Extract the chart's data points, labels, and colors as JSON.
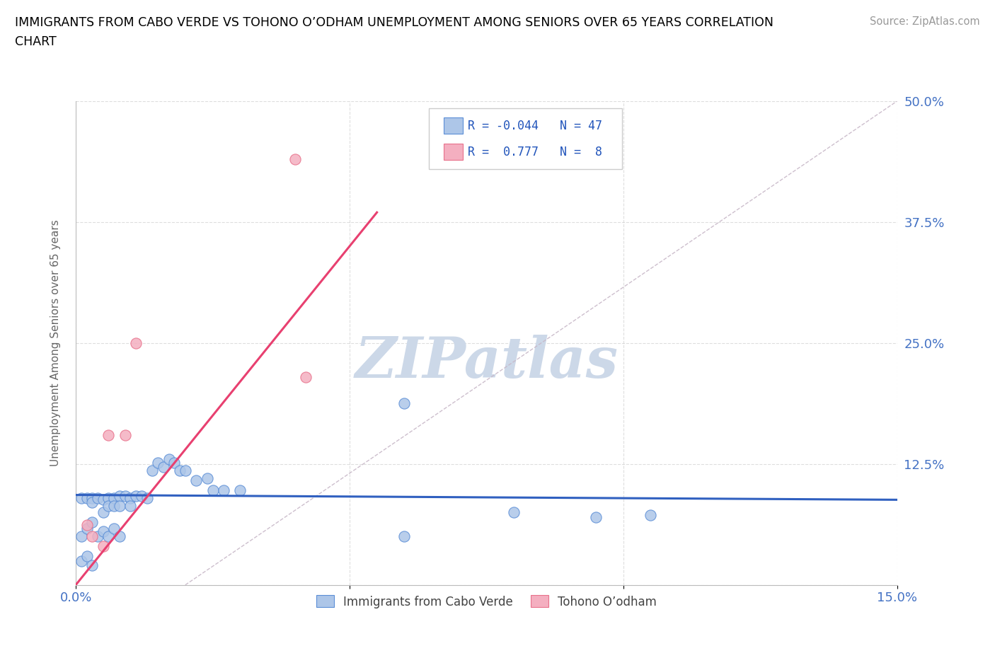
{
  "title": "IMMIGRANTS FROM CABO VERDE VS TOHONO O’ODHAM UNEMPLOYMENT AMONG SENIORS OVER 65 YEARS CORRELATION\nCHART",
  "source_text": "Source: ZipAtlas.com",
  "ylabel": "Unemployment Among Seniors over 65 years",
  "xlim": [
    0.0,
    0.15
  ],
  "ylim": [
    0.0,
    0.5
  ],
  "xticks": [
    0.0,
    0.05,
    0.1,
    0.15
  ],
  "xticklabels": [
    "0.0%",
    "",
    "",
    "15.0%"
  ],
  "yticks": [
    0.0,
    0.125,
    0.25,
    0.375,
    0.5
  ],
  "yticklabels": [
    "",
    "12.5%",
    "25.0%",
    "37.5%",
    "50.0%"
  ],
  "blue_R": -0.044,
  "blue_N": 47,
  "pink_R": 0.777,
  "pink_N": 8,
  "blue_fill": "#adc6e8",
  "pink_fill": "#f4afc0",
  "blue_edge": "#5b8ed6",
  "pink_edge": "#e8708a",
  "blue_line": "#3060c0",
  "pink_line": "#e84070",
  "ref_line": "#c8b8c8",
  "grid_color": "#c8c8c8",
  "watermark_color": "#ccd8e8",
  "blue_dots": [
    [
      0.001,
      0.09
    ],
    [
      0.002,
      0.09
    ],
    [
      0.003,
      0.09
    ],
    [
      0.003,
      0.085
    ],
    [
      0.004,
      0.09
    ],
    [
      0.005,
      0.088
    ],
    [
      0.005,
      0.075
    ],
    [
      0.006,
      0.09
    ],
    [
      0.006,
      0.082
    ],
    [
      0.007,
      0.09
    ],
    [
      0.007,
      0.082
    ],
    [
      0.008,
      0.092
    ],
    [
      0.008,
      0.082
    ],
    [
      0.009,
      0.092
    ],
    [
      0.01,
      0.09
    ],
    [
      0.01,
      0.082
    ],
    [
      0.011,
      0.092
    ],
    [
      0.012,
      0.092
    ],
    [
      0.013,
      0.09
    ],
    [
      0.014,
      0.118
    ],
    [
      0.015,
      0.126
    ],
    [
      0.016,
      0.122
    ],
    [
      0.017,
      0.13
    ],
    [
      0.018,
      0.126
    ],
    [
      0.019,
      0.118
    ],
    [
      0.02,
      0.118
    ],
    [
      0.022,
      0.108
    ],
    [
      0.024,
      0.11
    ],
    [
      0.025,
      0.098
    ],
    [
      0.027,
      0.098
    ],
    [
      0.03,
      0.098
    ],
    [
      0.001,
      0.05
    ],
    [
      0.002,
      0.058
    ],
    [
      0.003,
      0.065
    ],
    [
      0.004,
      0.05
    ],
    [
      0.005,
      0.055
    ],
    [
      0.006,
      0.05
    ],
    [
      0.007,
      0.058
    ],
    [
      0.008,
      0.05
    ],
    [
      0.001,
      0.025
    ],
    [
      0.002,
      0.03
    ],
    [
      0.003,
      0.02
    ],
    [
      0.06,
      0.188
    ],
    [
      0.06,
      0.05
    ],
    [
      0.08,
      0.075
    ],
    [
      0.095,
      0.07
    ],
    [
      0.105,
      0.072
    ]
  ],
  "pink_dots": [
    [
      0.006,
      0.155
    ],
    [
      0.009,
      0.155
    ],
    [
      0.011,
      0.25
    ],
    [
      0.04,
      0.44
    ],
    [
      0.042,
      0.215
    ],
    [
      0.002,
      0.062
    ],
    [
      0.003,
      0.05
    ],
    [
      0.005,
      0.04
    ]
  ],
  "blue_line_x": [
    0.0,
    0.15
  ],
  "blue_line_y": [
    0.093,
    0.088
  ],
  "pink_line_x": [
    0.0,
    0.055
  ],
  "pink_line_y": [
    0.0,
    0.385
  ],
  "legend_label_blue": "Immigrants from Cabo Verde",
  "legend_label_pink": "Tohono O’odham"
}
